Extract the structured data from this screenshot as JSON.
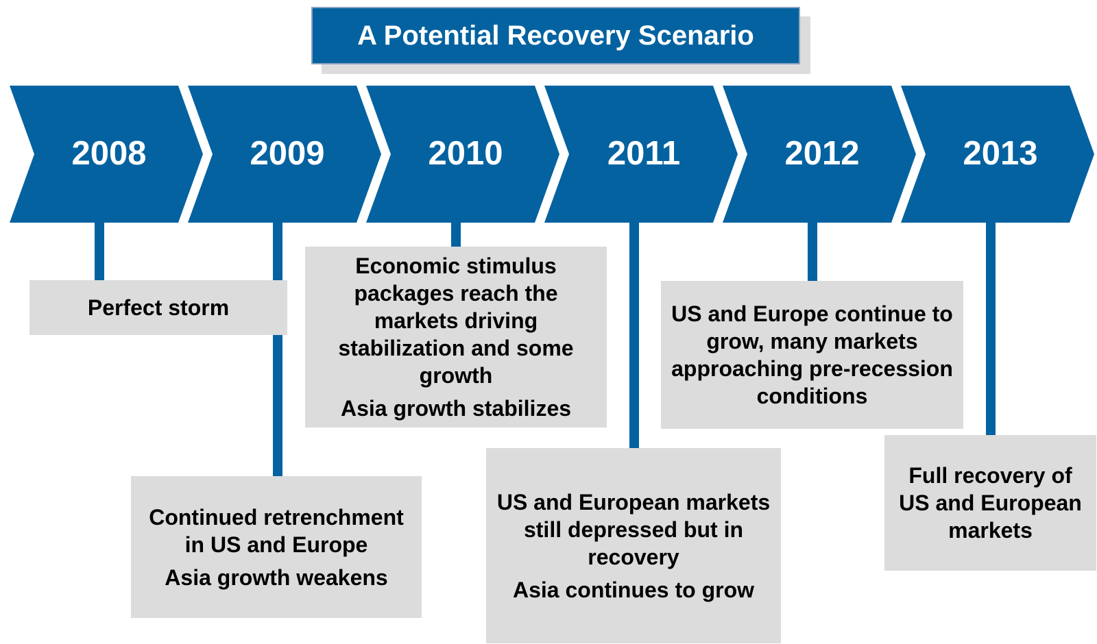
{
  "title": "A Potential Recovery Scenario",
  "stages": [
    {
      "year": "2008",
      "notes": [
        "Perfect storm"
      ]
    },
    {
      "year": "2009",
      "notes": [
        "Continued retrenchment in US and Europe",
        "Asia growth weakens"
      ]
    },
    {
      "year": "2010",
      "notes": [
        "Economic stimulus packages reach the markets driving stabilization and some growth",
        "Asia growth stabilizes"
      ]
    },
    {
      "year": "2011",
      "notes": [
        "US and European markets still depressed but in recovery",
        "Asia continues to grow"
      ]
    },
    {
      "year": "2012",
      "notes": [
        "US and Europe continue to grow, many markets approaching pre-recession conditions"
      ]
    },
    {
      "year": "2013",
      "notes": [
        "Full recovery of US and European markets"
      ]
    }
  ]
}
